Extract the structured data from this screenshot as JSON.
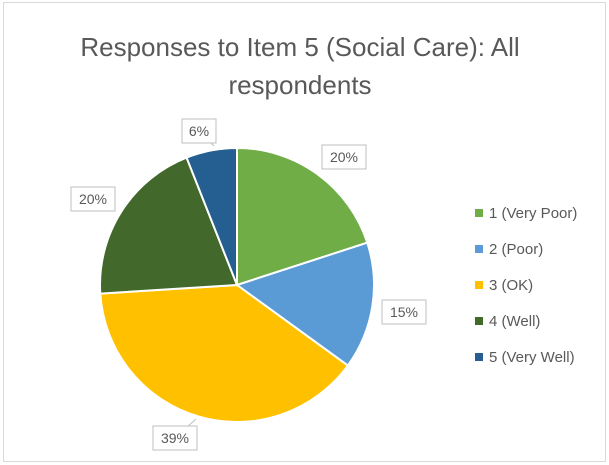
{
  "chart_data": {
    "type": "pie",
    "title_lines": [
      "Responses to Item 5 (Social Care): All",
      "respondents"
    ],
    "categories": [
      "1 (Very Poor)",
      "2 (Poor)",
      "3 (OK)",
      "4 (Well)",
      "5 (Very Well)"
    ],
    "values": [
      20,
      15,
      39,
      20,
      6
    ],
    "data_labels": [
      "20%",
      "15%",
      "39%",
      "20%",
      "6%"
    ],
    "colors": [
      "#70ad47",
      "#5b9bd5",
      "#ffc000",
      "#43682b",
      "#255e91"
    ],
    "legend_position": "right"
  }
}
